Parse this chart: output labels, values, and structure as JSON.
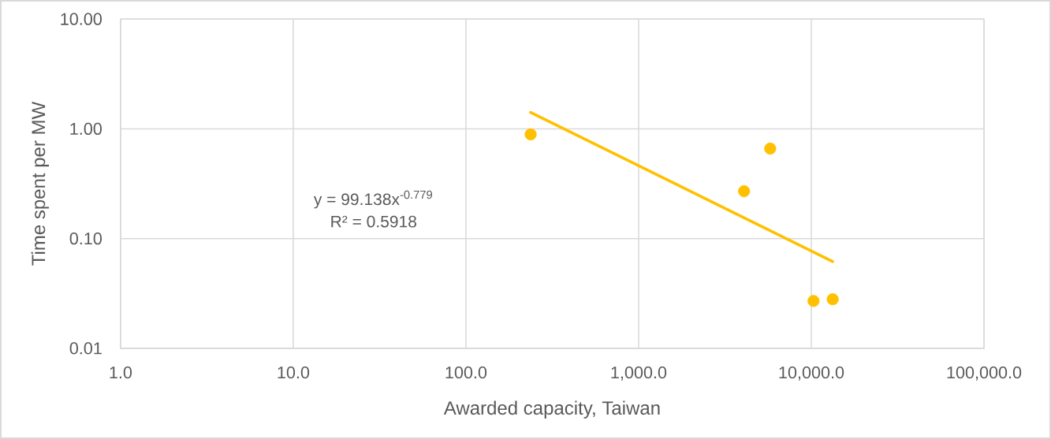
{
  "chart_data": {
    "type": "scatter",
    "xlabel": "Awarded capacity, Taiwan",
    "ylabel": "Time spent per MW",
    "log": "xy",
    "xlim": [
      1,
      100000
    ],
    "ylim": [
      0.01,
      10
    ],
    "xticks": [
      {
        "value": 1,
        "label": "1.0"
      },
      {
        "value": 10,
        "label": "10.0"
      },
      {
        "value": 100,
        "label": "100.0"
      },
      {
        "value": 1000,
        "label": "1,000.0"
      },
      {
        "value": 10000,
        "label": "10,000.0"
      },
      {
        "value": 100000,
        "label": "100,000.0"
      }
    ],
    "yticks": [
      0.01,
      {
        "value": 0.1,
        "label": "0.10"
      },
      {
        "value": 1,
        "label": "1.00"
      },
      {
        "value": 10,
        "label": "10.00"
      }
    ],
    "grid": true,
    "annotations": [
      "y = 99.138x$^{-0.779}$",
      "R² = 0.5918"
    ],
    "series": [
      {
        "color": "#ffc000",
        "marker": "circle",
        "x": [
          237,
          5780,
          4080,
          10300,
          13300
        ],
        "values": [
          0.89,
          0.66,
          0.27,
          0.027,
          0.028
        ]
      },
      {
        "type": "line",
        "color": "#ffc000",
        "marker": "none",
        "line_style": "solid",
        "x": [
          237,
          13300
        ],
        "values": [
          1.41,
          0.0618
        ]
      }
    ]
  }
}
